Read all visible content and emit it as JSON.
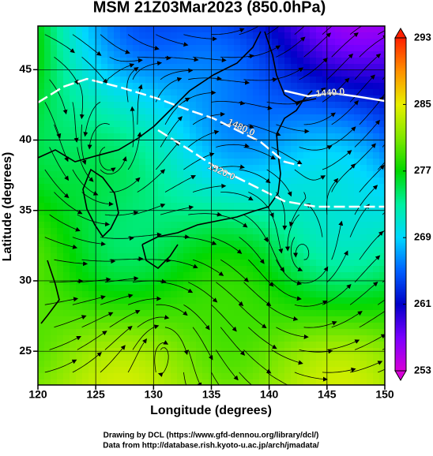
{
  "chart_data": {
    "type": "map",
    "title": "MSM 21Z03Mar2023 (850.0hPa)",
    "xlabel": "Longitude (degrees)",
    "ylabel": "Latitude  (degrees)",
    "xlim": [
      120,
      150
    ],
    "ylim": [
      22.6,
      48.1
    ],
    "xticks": [
      120,
      125,
      130,
      135,
      140,
      145,
      150
    ],
    "yticks": [
      25,
      30,
      35,
      40,
      45
    ],
    "grid": true,
    "colorbar": {
      "lim": [
        253,
        293
      ],
      "ticks": [
        253,
        261,
        269,
        277,
        285,
        293
      ],
      "colors": [
        "#d800d8",
        "#7a00ff",
        "#0000c8",
        "#0060ff",
        "#00d8ff",
        "#00f0a0",
        "#00d800",
        "#80e800",
        "#e8f000",
        "#ff9000",
        "#ff2000"
      ]
    },
    "contours": [
      {
        "value": 1440,
        "label": "1440.0"
      },
      {
        "value": 1480,
        "label": "1480.0"
      },
      {
        "value": 1520,
        "label": "1520.0"
      }
    ],
    "footer": [
      "Drawing by DCL (https://www.gfd-dennou.org/library/dcl/)",
      "Data from http://database.rish.kyoto-u.ac.jp/arch/jmadata/"
    ]
  }
}
